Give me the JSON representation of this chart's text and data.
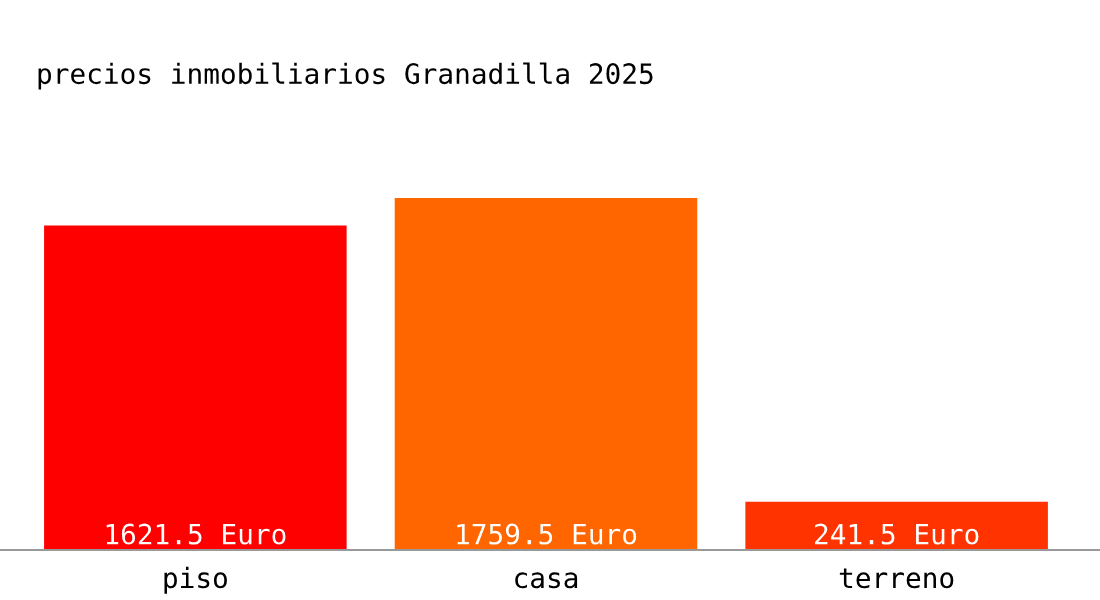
{
  "chart_data": {
    "type": "bar",
    "title": "precios inmobiliarios Granadilla 2025",
    "categories": [
      "piso",
      "casa",
      "terreno"
    ],
    "values": [
      1621.5,
      1759.5,
      241.5
    ],
    "colors": [
      "#ff0000",
      "#ff6600",
      "#ff3300"
    ],
    "value_labels": [
      "1621.5 Euro",
      "1759.5 Euro",
      "241.5 Euro"
    ],
    "grid": false,
    "legend": false
  }
}
